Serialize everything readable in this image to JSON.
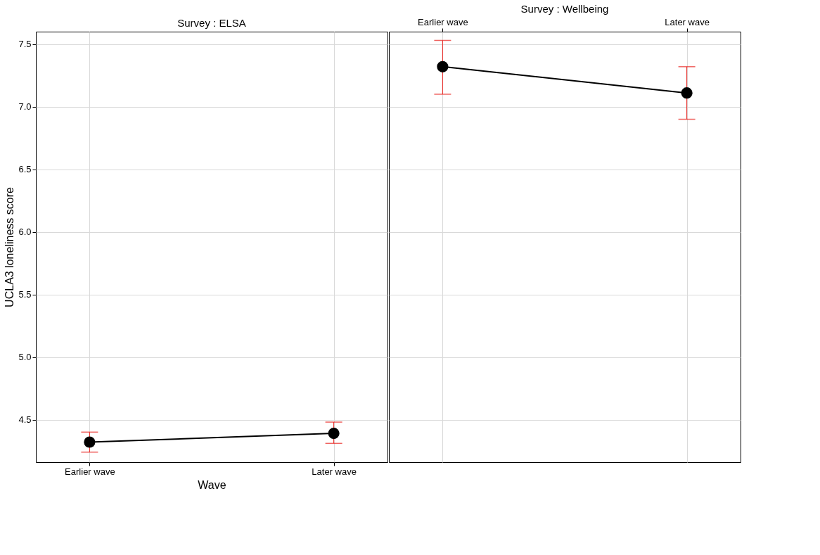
{
  "chart_data": [
    {
      "type": "line",
      "title": "Survey : ELSA",
      "xlabel": "Wave",
      "ylabel": "UCLA3 loneliness score",
      "categories": [
        "Earlier wave",
        "Later wave"
      ],
      "series": [
        {
          "color": "#000000",
          "values": [
            4.32,
            4.39
          ],
          "errors": [
            [
              4.24,
              4.4
            ],
            [
              4.31,
              4.48
            ]
          ]
        }
      ],
      "ylim": [
        4.16,
        7.6
      ],
      "yticks": [
        4.5,
        {
          "value": 5,
          "label": "5.0"
        },
        5.5,
        {
          "value": 6,
          "label": "6.0"
        },
        6.5,
        {
          "value": 7,
          "label": "7.0"
        },
        7.5
      ],
      "grid": true,
      "marker": "circle",
      "line_style": "solid"
    },
    {
      "type": "line",
      "title": "Survey : Wellbeing",
      "categories": [
        "Earlier wave",
        "Later wave"
      ],
      "series": [
        {
          "color": "#000000",
          "values": [
            7.32,
            7.11
          ],
          "errors": [
            [
              7.1,
              7.53
            ],
            [
              6.9,
              7.32
            ]
          ]
        }
      ],
      "ylim": [
        4.16,
        7.6
      ],
      "yticks": [
        4.5,
        5,
        5.5,
        6,
        6.5,
        7,
        7.5
      ],
      "grid": true,
      "marker": "circle",
      "line_style": "solid",
      "tick_labels": "x"
    }
  ]
}
